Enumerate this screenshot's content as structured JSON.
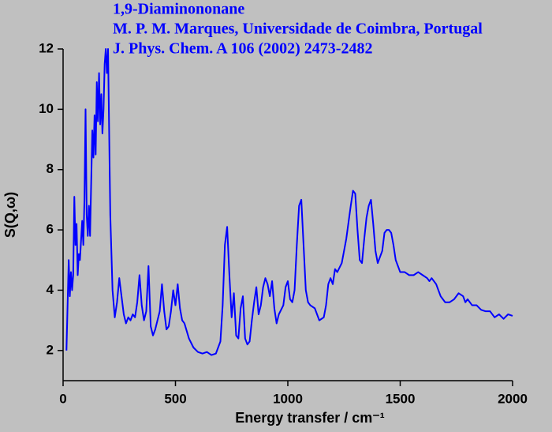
{
  "chart_data": {
    "type": "line",
    "title": "1,9-Diaminononane",
    "subtitle": [
      "M. P. M. Marques, Universidade de Coimbra, Portugal",
      "J. Phys. Chem. A 106 (2002) 2473-2482"
    ],
    "x_label": "Energy transfer / cm⁻¹",
    "y_label": "S(Q,ω)",
    "xlim": [
      0,
      2000
    ],
    "xticks": [
      0,
      500,
      1000,
      1500,
      2000
    ],
    "ylim": [
      1,
      12
    ],
    "yticks": [
      2,
      4,
      6,
      8,
      10,
      12
    ],
    "grid": false,
    "series": [
      {
        "color": "#0000ff",
        "x": [
          15,
          20,
          25,
          30,
          35,
          40,
          45,
          50,
          55,
          60,
          65,
          70,
          75,
          85,
          90,
          95,
          100,
          105,
          110,
          115,
          120,
          130,
          135,
          140,
          145,
          150,
          155,
          160,
          165,
          170,
          175,
          180,
          185,
          190,
          195,
          200,
          210,
          220,
          230,
          240,
          250,
          260,
          270,
          280,
          290,
          300,
          310,
          320,
          330,
          340,
          350,
          360,
          370,
          380,
          390,
          400,
          410,
          420,
          430,
          440,
          450,
          460,
          470,
          480,
          490,
          500,
          510,
          520,
          530,
          540,
          560,
          580,
          600,
          620,
          640,
          660,
          680,
          700,
          710,
          720,
          730,
          740,
          750,
          760,
          770,
          780,
          790,
          800,
          810,
          820,
          830,
          840,
          850,
          860,
          870,
          880,
          890,
          900,
          910,
          920,
          930,
          940,
          950,
          960,
          980,
          990,
          1000,
          1010,
          1020,
          1030,
          1040,
          1050,
          1060,
          1070,
          1080,
          1090,
          1100,
          1120,
          1140,
          1160,
          1170,
          1180,
          1190,
          1200,
          1210,
          1220,
          1240,
          1260,
          1280,
          1290,
          1300,
          1310,
          1320,
          1330,
          1340,
          1350,
          1360,
          1370,
          1380,
          1390,
          1400,
          1410,
          1420,
          1430,
          1440,
          1450,
          1460,
          1470,
          1480,
          1490,
          1500,
          1520,
          1540,
          1560,
          1580,
          1600,
          1620,
          1630,
          1640,
          1660,
          1680,
          1700,
          1720,
          1740,
          1760,
          1780,
          1790,
          1800,
          1820,
          1840,
          1860,
          1880,
          1900,
          1920,
          1940,
          1960,
          1980,
          2000
        ],
        "values": [
          2.0,
          3.5,
          5.0,
          3.8,
          4.6,
          4.0,
          4.5,
          7.1,
          5.5,
          6.2,
          4.5,
          5.2,
          5.0,
          6.3,
          5.5,
          7.0,
          10.0,
          6.5,
          5.8,
          6.8,
          5.8,
          9.3,
          8.4,
          9.8,
          8.5,
          10.9,
          9.6,
          11.2,
          9.5,
          10.5,
          9.2,
          10.0,
          11.5,
          12.0,
          11.2,
          12.0,
          6.5,
          4.0,
          3.1,
          3.6,
          4.4,
          3.8,
          3.2,
          2.9,
          3.1,
          3.0,
          3.2,
          3.1,
          3.6,
          4.5,
          3.5,
          3.0,
          3.3,
          4.8,
          2.8,
          2.5,
          2.7,
          3.0,
          3.3,
          4.2,
          3.3,
          2.7,
          2.8,
          3.3,
          4.0,
          3.5,
          4.2,
          3.4,
          3.0,
          2.9,
          2.4,
          2.1,
          1.95,
          1.9,
          1.95,
          1.85,
          1.9,
          2.3,
          3.5,
          5.5,
          6.1,
          4.5,
          3.1,
          3.9,
          2.5,
          2.4,
          3.4,
          3.8,
          2.4,
          2.2,
          2.3,
          3.0,
          3.6,
          4.1,
          3.2,
          3.5,
          4.1,
          4.4,
          4.2,
          3.8,
          4.3,
          3.4,
          2.9,
          3.2,
          3.5,
          4.1,
          4.3,
          3.7,
          3.6,
          4.0,
          5.5,
          6.8,
          7.0,
          5.5,
          4.0,
          3.6,
          3.5,
          3.4,
          3.0,
          3.1,
          3.5,
          4.2,
          4.4,
          4.2,
          4.7,
          4.6,
          4.9,
          5.7,
          6.8,
          7.3,
          7.2,
          6.0,
          5.0,
          4.9,
          5.7,
          6.4,
          6.8,
          7.0,
          6.2,
          5.3,
          4.9,
          5.1,
          5.3,
          5.9,
          6.0,
          6.0,
          5.9,
          5.5,
          5.0,
          4.8,
          4.6,
          4.6,
          4.5,
          4.5,
          4.6,
          4.5,
          4.4,
          4.3,
          4.4,
          4.2,
          3.8,
          3.6,
          3.6,
          3.7,
          3.9,
          3.8,
          3.6,
          3.7,
          3.5,
          3.5,
          3.35,
          3.3,
          3.3,
          3.1,
          3.2,
          3.05,
          3.2,
          3.15
        ]
      }
    ]
  }
}
